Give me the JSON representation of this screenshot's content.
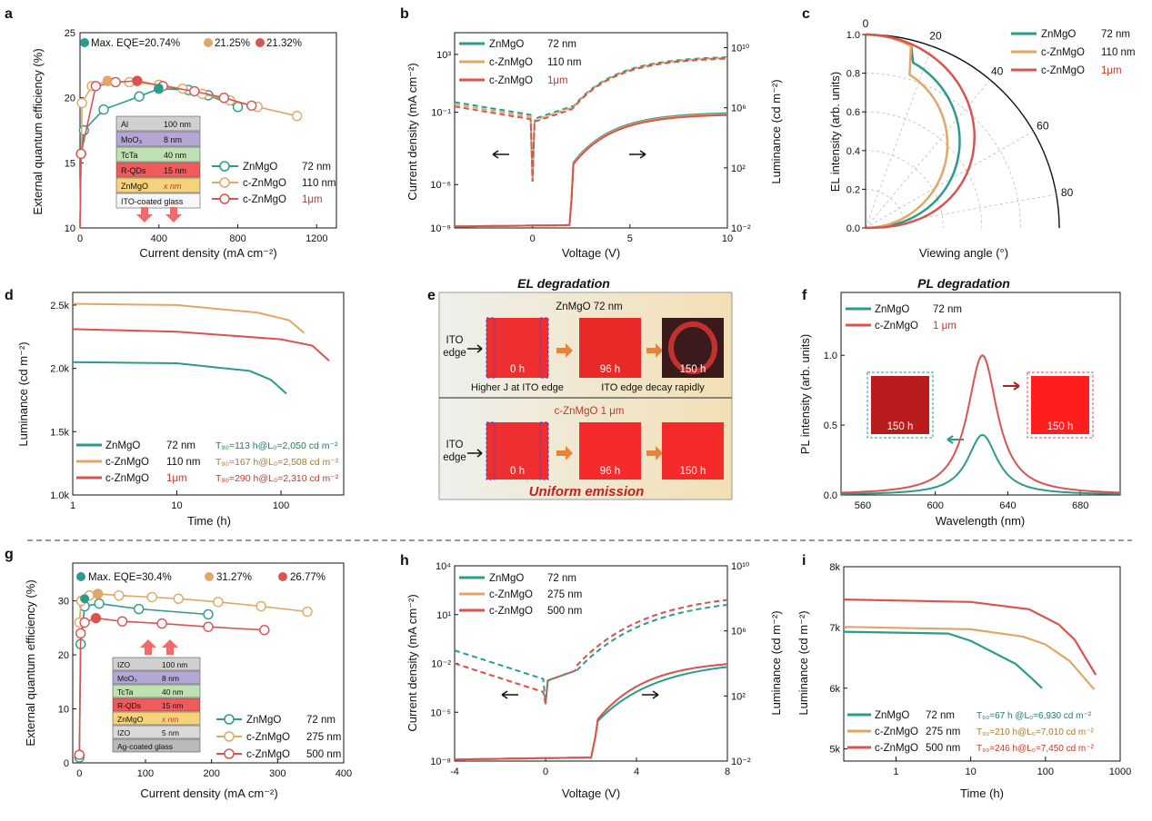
{
  "colors": {
    "teal": "#2a9b8c",
    "tan": "#e0a766",
    "red": "#d9534f",
    "redtext": "#c0392b",
    "tealtext": "#1f7a6e",
    "tantext": "#a9782e",
    "box": "#f2f2f2"
  },
  "panels": {
    "a": {
      "label": "a",
      "xlabel": "Current density (mA cm⁻²)",
      "ylabel": "External quantum efficiency (%)",
      "max": [
        "Max. EQE=20.74%",
        "21.25%",
        "21.32%"
      ],
      "legend": [
        "ZnMgO",
        "c-ZnMgO",
        "c-ZnMgO"
      ],
      "legend_th": [
        "72 nm",
        "110 nm",
        "1μm"
      ],
      "stack": [
        "Al",
        "MoO₃",
        "TcTa",
        "R-QDs",
        "ZnMgO",
        "ITO-coated glass"
      ],
      "stack_th": [
        "100 nm",
        "8 nm",
        "40 nm",
        "15 nm",
        "x nm",
        ""
      ],
      "xticks": [
        "0",
        "400",
        "800",
        "1200"
      ],
      "yticks": [
        "10",
        "15",
        "20",
        "25"
      ]
    },
    "b": {
      "label": "b",
      "xlabel": "Voltage (V)",
      "ylabel": "Current density (mA cm⁻²)",
      "ylabel2": "Luminance (cd m⁻²)",
      "legend": [
        "ZnMgO",
        "c-ZnMgO",
        "c-ZnMgO"
      ],
      "legend_th": [
        "72 nm",
        "110 nm",
        "1μm"
      ],
      "xticks": [
        "0",
        "5",
        "10"
      ],
      "yticks": [
        "10⁻⁹",
        "10⁻⁶",
        "10⁻¹",
        "10³"
      ],
      "y2ticks": [
        "10⁻²",
        "10²",
        "10⁶",
        "10¹⁰"
      ]
    },
    "c": {
      "label": "c",
      "xlabel": "Viewing angle (°)",
      "ylabel": "EL intensity (arb. units)",
      "legend": [
        "ZnMgO",
        "c-ZnMgO",
        "c-ZnMgO"
      ],
      "legend_th": [
        "72 nm",
        "110 nm",
        "1μm"
      ],
      "rticks": [
        "0.0",
        "0.2",
        "0.4",
        "0.6",
        "0.8",
        "1.0"
      ],
      "aticks": [
        "0",
        "20",
        "40",
        "60",
        "80"
      ]
    },
    "d": {
      "label": "d",
      "xlabel": "Time (h)",
      "ylabel": "Luminance (cd m⁻²)",
      "legend": [
        "ZnMgO",
        "c-ZnMgO",
        "c-ZnMgO"
      ],
      "legend_th": [
        "72 nm",
        "110 nm",
        "1μm"
      ],
      "t90": [
        "T₉₀=113 h@L₀=2,050 cd m⁻²",
        "T₉₀=167 h@L₀=2,508 cd m⁻²",
        "T₉₀=290 h@L₀=2,310 cd m⁻²"
      ],
      "xticks": [
        "1",
        "10",
        "100"
      ],
      "yticks": [
        "1.0k",
        "1.5k",
        "2.0k",
        "2.5k"
      ]
    },
    "e": {
      "label": "e",
      "title": "EL degradation",
      "top_title": "ZnMgO 72 nm",
      "bottom_title": "c-ZnMgO 1 μm",
      "edge": [
        "ITO",
        "edge"
      ],
      "times": [
        "0 h",
        "96 h",
        "150 h"
      ],
      "note1": "Higher J at ITO edge",
      "note2": "ITO edge decay rapidly",
      "uniform": "Uniform emission"
    },
    "f": {
      "label": "f",
      "title": "PL degradation",
      "xlabel": "Wavelength (nm)",
      "ylabel": "PL intensity (arb. units)",
      "legend": [
        "ZnMgO",
        "c-ZnMgO"
      ],
      "legend_th": [
        "72 nm",
        "1 μm"
      ],
      "inset": "150 h",
      "xticks": [
        "560",
        "600",
        "640",
        "680"
      ],
      "yticks": [
        "0.0",
        "0.5",
        "1.0"
      ]
    },
    "g": {
      "label": "g",
      "xlabel": "Current density (mA cm⁻²)",
      "ylabel": "External quantum efficiency (%)",
      "max": [
        "Max. EQE=30.4%",
        "31.27%",
        "26.77%"
      ],
      "legend": [
        "ZnMgO",
        "c-ZnMgO",
        "c-ZnMgO"
      ],
      "legend_th": [
        "72 nm",
        "275 nm",
        "500 nm"
      ],
      "stack": [
        "IZO",
        "MoO₃",
        "TcTa",
        "R-QDs",
        "ZnMgO",
        "IZO",
        "Ag-coated glass"
      ],
      "stack_th": [
        "100 nm",
        "8 nm",
        "40 nm",
        "15 nm",
        "x nm",
        "5 nm",
        ""
      ],
      "xticks": [
        "0",
        "100",
        "200",
        "300",
        "400"
      ],
      "yticks": [
        "0",
        "10",
        "20",
        "30"
      ]
    },
    "h": {
      "label": "h",
      "xlabel": "Voltage (V)",
      "ylabel": "Current density (mA cm⁻²)",
      "ylabel2": "Luminance (cd m⁻²)",
      "legend": [
        "ZnMgO",
        "c-ZnMgO",
        "c-ZnMgO"
      ],
      "legend_th": [
        "72 nm",
        "275 nm",
        "500 nm"
      ],
      "xticks": [
        "-4",
        "0",
        "4",
        "8"
      ],
      "yticks": [
        "10⁻⁸",
        "10⁻⁵",
        "10⁻²",
        "10¹",
        "10⁴"
      ],
      "y2ticks": [
        "10⁻²",
        "10²",
        "10⁶",
        "10¹⁰"
      ]
    },
    "i": {
      "label": "i",
      "xlabel": "Time (h)",
      "ylabel": "Luminance (cd m⁻²)",
      "legend": [
        "ZnMgO",
        "c-ZnMgO",
        "c-ZnMgO"
      ],
      "legend_th": [
        "72 nm",
        "275 nm",
        "500 nm"
      ],
      "t90": [
        "T₉₀=67 h  @L₀=6,930 cd m⁻²",
        "T₉₀=210 h@L₀=7,010 cd m⁻²",
        "T₉₀=246 h@L₀=7,450 cd m⁻²"
      ],
      "xticks": [
        "1",
        "10",
        "100",
        "1000"
      ],
      "yticks": [
        "5k",
        "6k",
        "7k",
        "8k"
      ]
    }
  },
  "chart_data": [
    {
      "panel": "a",
      "type": "line",
      "xlim": [
        0,
        1300
      ],
      "ylim": [
        10,
        25
      ],
      "series": [
        {
          "name": "ZnMgO 72 nm",
          "x": [
            5,
            20,
            120,
            300,
            400,
            550,
            650,
            800
          ],
          "y": [
            15.7,
            17.5,
            19.1,
            20.1,
            20.7,
            20.6,
            20.2,
            19.3
          ]
        },
        {
          "name": "c-ZnMgO 110 nm",
          "x": [
            10,
            60,
            140,
            250,
            400,
            520,
            620,
            760,
            900,
            1100
          ],
          "y": [
            19.6,
            20.9,
            21.3,
            21.2,
            21.0,
            20.7,
            20.3,
            19.8,
            19.3,
            18.6
          ]
        },
        {
          "name": "c-ZnMgO 1μm",
          "x": [
            5,
            80,
            180,
            290,
            420,
            580,
            730,
            870
          ],
          "y": [
            15.7,
            20.9,
            21.2,
            21.3,
            20.9,
            20.5,
            20.0,
            19.4
          ]
        }
      ]
    },
    {
      "panel": "g",
      "type": "line",
      "xlim": [
        -10,
        400
      ],
      "ylim": [
        0,
        37
      ],
      "series": [
        {
          "name": "ZnMgO 72 nm",
          "x": [
            0,
            2,
            8,
            30,
            90,
            195
          ],
          "y": [
            1,
            22,
            29,
            29.5,
            28.5,
            27.5
          ]
        },
        {
          "name": "c-ZnMgO 275 nm",
          "x": [
            0,
            3,
            15,
            28,
            60,
            110,
            150,
            210,
            275,
            345
          ],
          "y": [
            26,
            30,
            31,
            31.3,
            31,
            30.7,
            30.4,
            29.8,
            29,
            28
          ]
        },
        {
          "name": "c-ZnMgO 500 nm",
          "x": [
            0,
            2,
            8,
            25,
            65,
            125,
            195,
            280
          ],
          "y": [
            1.5,
            24,
            26,
            26.8,
            26.2,
            25.8,
            25.2,
            24.6
          ]
        }
      ]
    },
    {
      "panel": "f",
      "type": "line",
      "xlim": [
        548,
        702
      ],
      "ylim": [
        0,
        1.45
      ],
      "series": [
        {
          "name": "ZnMgO 72 nm",
          "peak": 626,
          "height": 0.43,
          "fwhm": 20
        },
        {
          "name": "c-ZnMgO 1 μm",
          "peak": 626,
          "height": 1.0,
          "fwhm": 20
        }
      ]
    },
    {
      "panel": "d",
      "type": "line",
      "xscale": "log",
      "xlim": [
        1,
        400
      ],
      "ylim": [
        1000,
        2600
      ],
      "series": [
        {
          "name": "ZnMgO 72 nm",
          "x": [
            1,
            10,
            50,
            80,
            113
          ],
          "y": [
            2050,
            2040,
            1980,
            1910,
            1800
          ]
        },
        {
          "name": "c-ZnMgO 110 nm",
          "x": [
            1,
            10,
            60,
            120,
            167
          ],
          "y": [
            2510,
            2500,
            2440,
            2380,
            2280
          ]
        },
        {
          "name": "c-ZnMgO 1μm",
          "x": [
            1,
            10,
            100,
            200,
            290
          ],
          "y": [
            2310,
            2290,
            2230,
            2180,
            2060
          ]
        }
      ]
    },
    {
      "panel": "i",
      "type": "line",
      "xscale": "log",
      "xlim": [
        0.2,
        1000
      ],
      "ylim": [
        4800,
        8000
      ],
      "series": [
        {
          "name": "ZnMgO 72 nm",
          "x": [
            0.2,
            5,
            10,
            40,
            67,
            90
          ],
          "y": [
            6930,
            6900,
            6780,
            6400,
            6150,
            6000
          ]
        },
        {
          "name": "c-ZnMgO 275 nm",
          "x": [
            0.2,
            10,
            50,
            100,
            210,
            450
          ],
          "y": [
            7010,
            6970,
            6850,
            6720,
            6450,
            5980
          ]
        },
        {
          "name": "c-ZnMgO 500 nm",
          "x": [
            0.2,
            10,
            60,
            150,
            246,
            470
          ],
          "y": [
            7460,
            7420,
            7300,
            7050,
            6800,
            6220
          ]
        }
      ]
    }
  ]
}
